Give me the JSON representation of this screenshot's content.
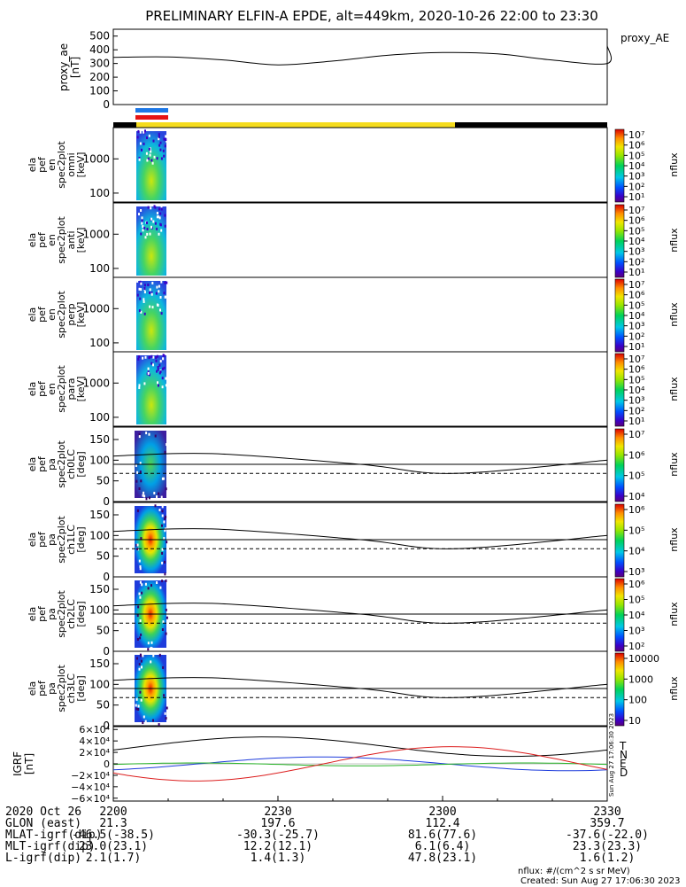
{
  "title": "PRELIMINARY ELFIN-A EPDE, alt=449km, 2020-10-26 22:00 to 23:30",
  "colors": {
    "blue_bar": "#1e78e6",
    "red_bar": "#e61414",
    "yellow_bar": "#f5dc1e",
    "black_bar": "#000000",
    "grf_T": "#000000",
    "grf_N": "#1e3cdc",
    "grf_E": "#28b428",
    "grf_D": "#dc1e1e"
  },
  "chart_data": [
    {
      "type": "line",
      "panel": "proxy_ae",
      "ylabel_lines": [
        "proxy_ae",
        "[nT]"
      ],
      "legend": "proxy_AE",
      "ylim": [
        0,
        550
      ],
      "yticks": [
        "0",
        "100",
        "200",
        "300",
        "400",
        "500"
      ],
      "x_min": [
        0,
        10,
        20,
        30,
        40,
        50,
        60,
        70,
        80,
        90
      ],
      "values": [
        345,
        348,
        326,
        290,
        318,
        360,
        380,
        370,
        325,
        300
      ],
      "end_value": 430
    },
    {
      "type": "heatmap",
      "panel": "spec_omni",
      "ylabel_lines": [
        "ela",
        "pef",
        "en",
        "spec2plot",
        "omni",
        "[keV]"
      ],
      "ytick_labels": [
        "1000",
        "100"
      ],
      "yscale": "log",
      "cbar_labels": [
        "10⁷",
        "10⁶",
        "10⁵",
        "10⁴",
        "10³",
        "10²",
        "10¹"
      ],
      "cbar_unit": "nflux"
    },
    {
      "type": "heatmap",
      "panel": "spec_anti",
      "ylabel_lines": [
        "ela",
        "pef",
        "en",
        "spec2plot",
        "anti",
        "[keV]"
      ],
      "ytick_labels": [
        "1000",
        "100"
      ],
      "yscale": "log",
      "cbar_labels": [
        "10⁷",
        "10⁶",
        "10⁵",
        "10⁴",
        "10³",
        "10²",
        "10¹"
      ],
      "cbar_unit": "nflux"
    },
    {
      "type": "heatmap",
      "panel": "spec_perp",
      "ylabel_lines": [
        "ela",
        "pef",
        "en",
        "spec2plot",
        "perp",
        "[keV]"
      ],
      "ytick_labels": [
        "1000",
        "100"
      ],
      "yscale": "log",
      "cbar_labels": [
        "10⁷",
        "10⁶",
        "10⁵",
        "10⁴",
        "10³",
        "10²",
        "10¹"
      ],
      "cbar_unit": "nflux"
    },
    {
      "type": "heatmap",
      "panel": "spec_para",
      "ylabel_lines": [
        "ela",
        "pef",
        "en",
        "spec2plot",
        "para",
        "[keV]"
      ],
      "ytick_labels": [
        "1000",
        "100"
      ],
      "yscale": "log",
      "cbar_labels": [
        "10⁷",
        "10⁶",
        "10⁵",
        "10⁴",
        "10³",
        "10²",
        "10¹"
      ],
      "cbar_unit": "nflux"
    },
    {
      "type": "heatmap",
      "panel": "pa_ch0",
      "ylabel_lines": [
        "ela",
        "pef",
        "pa",
        "spec2plot",
        "ch0LC",
        "[deg]"
      ],
      "yticks": [
        "0",
        "50",
        "100",
        "150"
      ],
      "ylim": [
        0,
        180
      ],
      "cbar_labels": [
        "10⁷",
        "10⁶",
        "10⁵",
        "10⁴"
      ],
      "cbar_unit": "nflux"
    },
    {
      "type": "heatmap",
      "panel": "pa_ch1",
      "ylabel_lines": [
        "ela",
        "pef",
        "pa",
        "spec2plot",
        "ch1LC",
        "[deg]"
      ],
      "yticks": [
        "0",
        "50",
        "100",
        "150"
      ],
      "ylim": [
        0,
        180
      ],
      "cbar_labels": [
        "10⁶",
        "10⁵",
        "10⁴",
        "10³"
      ],
      "cbar_unit": "nflux"
    },
    {
      "type": "heatmap",
      "panel": "pa_ch2",
      "ylabel_lines": [
        "ela",
        "pef",
        "pa",
        "spec2plot",
        "ch2LC",
        "[deg]"
      ],
      "yticks": [
        "0",
        "50",
        "100",
        "150"
      ],
      "ylim": [
        0,
        180
      ],
      "cbar_labels": [
        "10⁶",
        "10⁵",
        "10⁴",
        "10³",
        "10²"
      ],
      "cbar_unit": "nflux"
    },
    {
      "type": "heatmap",
      "panel": "pa_ch3",
      "ylabel_lines": [
        "ela",
        "pef",
        "pa",
        "spec2plot",
        "ch3LC",
        "[deg]"
      ],
      "yticks": [
        "0",
        "50",
        "100",
        "150"
      ],
      "ylim": [
        0,
        180
      ],
      "cbar_labels": [
        "10000",
        "1000",
        "100",
        "10"
      ],
      "cbar_unit": "nflux"
    },
    {
      "type": "line",
      "panel": "igrf",
      "ylabel_lines": [
        "IGRF",
        "[nT]"
      ],
      "ylim": [
        -65000,
        65000
      ],
      "yticks": [
        "6×10⁴",
        "4×10⁴",
        "2×10⁴",
        "0",
        "−2×10⁴",
        "−4×10⁴",
        "−6×10⁴"
      ],
      "legend": [
        "T",
        "N",
        "E",
        "D"
      ],
      "side_stamp": "Sun Aug 27 17:06:30 2023"
    }
  ],
  "xaxis": {
    "tick_labels": [
      "2200",
      "2230",
      "2300",
      "2330"
    ]
  },
  "footer": {
    "rows": [
      [
        "2020 Oct 26",
        "2200",
        "2230",
        "2300",
        "2330"
      ],
      [
        "GLON (east)",
        "21.3",
        "197.6",
        "112.4",
        "359.7"
      ],
      [
        "MLAT-igrf(dip)",
        "-46.5(-38.5)",
        "-30.3(-25.7)",
        "81.6(77.6)",
        "-37.6(-22.0)"
      ],
      [
        "MLT-igrf(dip)",
        "23.0(23.1)",
        "12.2(12.1)",
        "6.1(6.4)",
        "23.3(23.3)"
      ],
      [
        "L-igrf(dip)",
        "2.1(1.7)",
        "1.4(1.3)",
        "47.8(23.1)",
        "1.6(1.2)"
      ]
    ],
    "flux_unit": "nflux: #/(cm^2 s sr MeV)",
    "created": "Created: Sun Aug 27 17:06:30 2023"
  }
}
